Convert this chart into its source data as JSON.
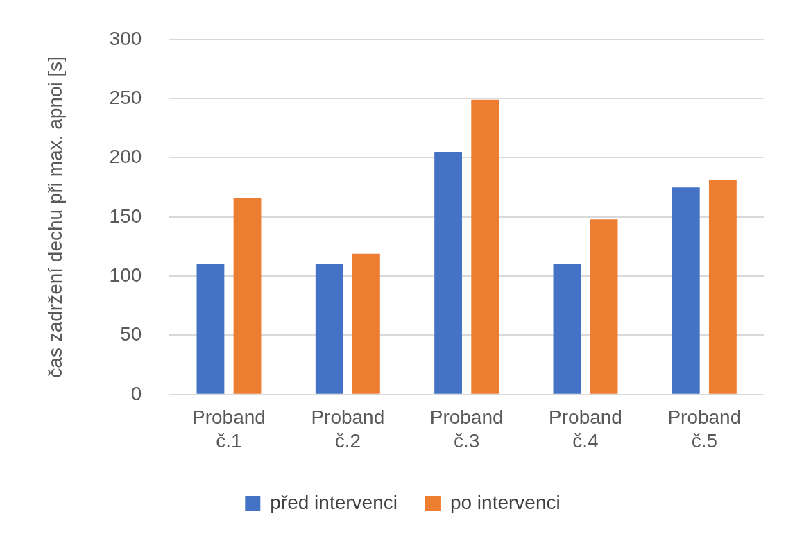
{
  "chart_data": {
    "type": "bar",
    "ylabel": "čas zadržení dechu při max. apnoi [s]",
    "categories": [
      "Proband č.1",
      "Proband č.2",
      "Proband č.3",
      "Proband č.4",
      "Proband č.5"
    ],
    "series": [
      {
        "name": "před intervenci",
        "color": "#4472c4",
        "values": [
          110,
          110,
          205,
          110,
          175
        ]
      },
      {
        "name": "po intervenci",
        "color": "#ed7d31",
        "values": [
          166,
          119,
          249,
          148,
          181
        ]
      }
    ],
    "ylim": [
      0,
      300
    ],
    "yticks": [
      0,
      50,
      100,
      150,
      200,
      250,
      300
    ],
    "grid": "y",
    "legend": "bottom"
  }
}
